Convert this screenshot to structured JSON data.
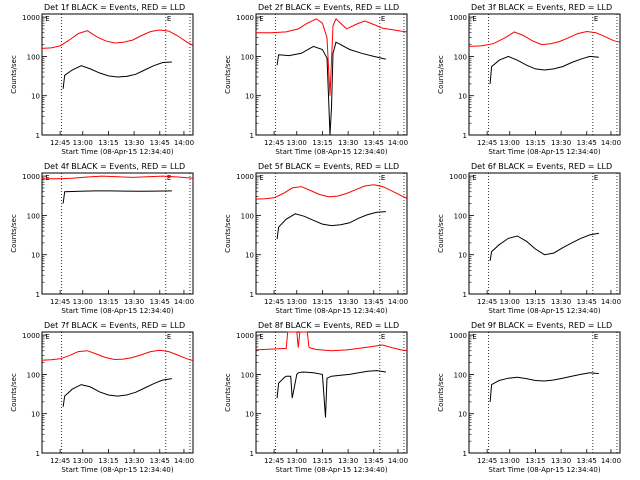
{
  "figure": {
    "background": "#ffffff",
    "axis_color": "#000000",
    "events_color": "#000000",
    "lld_color": "#ff0000"
  },
  "chart_data": [
    {
      "type": "line",
      "title": "Det 1f BLACK = Events, RED = LLD",
      "xlabel": "Start Time (08-Apr-15 12:34:40)",
      "ylabel": "Counts/sec",
      "yscale": "log",
      "ylim": [
        1,
        1200
      ],
      "x_ticks": [
        "12:45",
        "13:00",
        "13:15",
        "13:30",
        "13:45",
        "14:00"
      ],
      "y_ticks": [
        "1",
        "10",
        "100",
        "1000"
      ],
      "markers": [
        "E",
        "E"
      ],
      "series": [
        {
          "name": "LLD",
          "color": "#ff0000",
          "x": [
            0,
            0.06,
            0.12,
            0.18,
            0.24,
            0.3,
            0.36,
            0.42,
            0.48,
            0.54,
            0.6,
            0.66,
            0.72,
            0.78,
            0.84,
            0.9,
            0.96,
            1.0
          ],
          "y": [
            160,
            165,
            185,
            260,
            380,
            450,
            320,
            250,
            220,
            230,
            260,
            340,
            430,
            470,
            440,
            330,
            230,
            190
          ]
        },
        {
          "name": "Events",
          "color": "#000000",
          "x": [
            0.14,
            0.15,
            0.2,
            0.26,
            0.32,
            0.38,
            0.44,
            0.5,
            0.56,
            0.62,
            0.68,
            0.74,
            0.8,
            0.86
          ],
          "y": [
            15,
            33,
            45,
            58,
            48,
            38,
            32,
            30,
            31,
            35,
            45,
            58,
            70,
            72
          ]
        }
      ]
    },
    {
      "type": "line",
      "title": "Det 2f BLACK = Events, RED = LLD",
      "xlabel": "Start Time (08-Apr-15 12:34:40)",
      "ylabel": "Counts/sec",
      "yscale": "log",
      "ylim": [
        1,
        1200
      ],
      "x_ticks": [
        "12:45",
        "13:00",
        "13:15",
        "13:30",
        "13:45",
        "14:00"
      ],
      "y_ticks": [
        "1",
        "10",
        "100",
        "1000"
      ],
      "markers": [
        "E",
        "E"
      ],
      "series": [
        {
          "name": "LLD",
          "color": "#ff0000",
          "x": [
            0,
            0.1,
            0.2,
            0.28,
            0.34,
            0.4,
            0.44,
            0.47,
            0.49,
            0.51,
            0.53,
            0.56,
            0.6,
            0.66,
            0.72,
            0.78,
            0.84,
            0.9,
            0.96,
            1.0
          ],
          "y": [
            400,
            400,
            420,
            500,
            700,
            900,
            700,
            300,
            10,
            600,
            900,
            700,
            500,
            650,
            800,
            650,
            520,
            480,
            440,
            420
          ]
        },
        {
          "name": "Events",
          "color": "#000000",
          "x": [
            0.14,
            0.15,
            0.22,
            0.3,
            0.38,
            0.44,
            0.47,
            0.48,
            0.49,
            0.5,
            0.51,
            0.53,
            0.56,
            0.62,
            0.7,
            0.78,
            0.86
          ],
          "y": [
            60,
            110,
            105,
            120,
            180,
            150,
            90,
            10,
            1,
            5,
            120,
            230,
            200,
            150,
            120,
            100,
            85
          ]
        }
      ]
    },
    {
      "type": "line",
      "title": "Det 3f BLACK = Events, RED = LLD",
      "xlabel": "Start Time (08-Apr-15 12:34:40)",
      "ylabel": "Counts/sec",
      "yscale": "log",
      "ylim": [
        1,
        1200
      ],
      "x_ticks": [
        "12:45",
        "13:00",
        "13:15",
        "13:30",
        "13:45",
        "14:00"
      ],
      "y_ticks": [
        "1",
        "10",
        "100",
        "1000"
      ],
      "markers": [
        "E",
        "E"
      ],
      "series": [
        {
          "name": "LLD",
          "color": "#ff0000",
          "x": [
            0,
            0.08,
            0.16,
            0.24,
            0.3,
            0.36,
            0.42,
            0.48,
            0.54,
            0.6,
            0.66,
            0.72,
            0.78,
            0.84,
            0.9,
            0.96,
            1.0
          ],
          "y": [
            180,
            185,
            210,
            300,
            420,
            340,
            250,
            200,
            210,
            240,
            300,
            380,
            430,
            400,
            320,
            250,
            230
          ]
        },
        {
          "name": "Events",
          "color": "#000000",
          "x": [
            0.14,
            0.15,
            0.2,
            0.26,
            0.32,
            0.38,
            0.44,
            0.5,
            0.56,
            0.62,
            0.68,
            0.74,
            0.8,
            0.86
          ],
          "y": [
            20,
            55,
            80,
            100,
            80,
            60,
            48,
            45,
            48,
            55,
            70,
            85,
            100,
            95
          ]
        }
      ]
    },
    {
      "type": "line",
      "title": "Det 4f BLACK = Events, RED = LLD",
      "xlabel": "Start Time (08-Apr-15 12:34:40)",
      "ylabel": "Counts/sec",
      "yscale": "log",
      "ylim": [
        1,
        1200
      ],
      "x_ticks": [
        "12:45",
        "13:00",
        "13:15",
        "13:30",
        "13:45",
        "14:00"
      ],
      "y_ticks": [
        "1",
        "10",
        "100",
        "1000"
      ],
      "markers": [
        "E",
        "E"
      ],
      "series": [
        {
          "name": "LLD",
          "color": "#ff0000",
          "x": [
            0,
            0.1,
            0.2,
            0.3,
            0.4,
            0.5,
            0.6,
            0.7,
            0.8,
            0.9,
            1.0
          ],
          "y": [
            850,
            860,
            880,
            950,
            1000,
            960,
            930,
            960,
            1000,
            950,
            880
          ]
        },
        {
          "name": "Events",
          "color": "#000000",
          "x": [
            0.14,
            0.15,
            0.25,
            0.35,
            0.45,
            0.55,
            0.65,
            0.75,
            0.86
          ],
          "y": [
            200,
            400,
            410,
            420,
            420,
            415,
            410,
            415,
            420
          ]
        }
      ]
    },
    {
      "type": "line",
      "title": "Det 5f BLACK = Events, RED = LLD",
      "xlabel": "Start Time (08-Apr-15 12:34:40)",
      "ylabel": "Counts/sec",
      "yscale": "log",
      "ylim": [
        1,
        1200
      ],
      "x_ticks": [
        "12:45",
        "13:00",
        "13:15",
        "13:30",
        "13:45",
        "14:00"
      ],
      "y_ticks": [
        "1",
        "10",
        "100",
        "1000"
      ],
      "markers": [
        "E",
        "E"
      ],
      "series": [
        {
          "name": "LLD",
          "color": "#ff0000",
          "x": [
            0,
            0.06,
            0.12,
            0.18,
            0.24,
            0.3,
            0.36,
            0.42,
            0.48,
            0.54,
            0.6,
            0.66,
            0.72,
            0.78,
            0.84,
            0.9,
            0.96,
            1.0
          ],
          "y": [
            260,
            265,
            280,
            360,
            500,
            540,
            430,
            340,
            300,
            310,
            360,
            450,
            560,
            600,
            540,
            420,
            320,
            270
          ]
        },
        {
          "name": "Events",
          "color": "#000000",
          "x": [
            0.14,
            0.15,
            0.2,
            0.26,
            0.32,
            0.38,
            0.44,
            0.5,
            0.56,
            0.62,
            0.68,
            0.74,
            0.8,
            0.86
          ],
          "y": [
            25,
            50,
            80,
            110,
            95,
            75,
            60,
            55,
            58,
            65,
            85,
            105,
            120,
            125
          ]
        }
      ]
    },
    {
      "type": "line",
      "title": "Det 6f BLACK = Events, RED = LLD",
      "xlabel": "Start Time (08-Apr-15 12:34:40)",
      "ylabel": "Counts/sec",
      "yscale": "log",
      "ylim": [
        1,
        1200
      ],
      "x_ticks": [
        "12:45",
        "13:00",
        "13:15",
        "13:30",
        "13:45",
        "14:00"
      ],
      "y_ticks": [
        "1",
        "10",
        "100",
        "1000"
      ],
      "markers": [
        "E",
        "E"
      ],
      "series": [
        {
          "name": "Events",
          "color": "#000000",
          "x": [
            0.14,
            0.15,
            0.2,
            0.26,
            0.32,
            0.38,
            0.44,
            0.5,
            0.56,
            0.62,
            0.68,
            0.74,
            0.8,
            0.86
          ],
          "y": [
            7,
            12,
            18,
            26,
            30,
            22,
            14,
            10,
            11,
            15,
            20,
            26,
            32,
            35
          ]
        }
      ]
    },
    {
      "type": "line",
      "title": "Det 7f BLACK = Events, RED = LLD",
      "xlabel": "Start Time (08-Apr-15 12:34:40)",
      "ylabel": "Counts/sec",
      "yscale": "log",
      "ylim": [
        1,
        1200
      ],
      "x_ticks": [
        "12:45",
        "13:00",
        "13:15",
        "13:30",
        "13:45",
        "14:00"
      ],
      "y_ticks": [
        "1",
        "10",
        "100",
        "1000"
      ],
      "markers": [
        "E",
        "E"
      ],
      "series": [
        {
          "name": "LLD",
          "color": "#ff0000",
          "x": [
            0,
            0.06,
            0.12,
            0.18,
            0.24,
            0.3,
            0.36,
            0.42,
            0.48,
            0.54,
            0.6,
            0.66,
            0.72,
            0.78,
            0.84,
            0.9,
            0.96,
            1.0
          ],
          "y": [
            230,
            235,
            250,
            300,
            380,
            400,
            330,
            270,
            240,
            245,
            270,
            320,
            380,
            410,
            380,
            310,
            250,
            225
          ]
        },
        {
          "name": "Events",
          "color": "#000000",
          "x": [
            0.14,
            0.15,
            0.2,
            0.26,
            0.32,
            0.38,
            0.44,
            0.5,
            0.56,
            0.62,
            0.68,
            0.74,
            0.8,
            0.86
          ],
          "y": [
            15,
            28,
            42,
            55,
            48,
            36,
            30,
            28,
            30,
            35,
            45,
            58,
            72,
            78
          ]
        }
      ]
    },
    {
      "type": "line",
      "title": "Det 8f BLACK = Events, RED = LLD",
      "xlabel": "Start Time (08-Apr-15 12:34:40)",
      "ylabel": "Counts/sec",
      "yscale": "log",
      "ylim": [
        1,
        1200
      ],
      "x_ticks": [
        "12:45",
        "13:00",
        "13:15",
        "13:30",
        "13:45",
        "14:00"
      ],
      "y_ticks": [
        "1",
        "10",
        "100",
        "1000"
      ],
      "markers": [
        "E",
        "E"
      ],
      "series": [
        {
          "name": "LLD",
          "color": "#ff0000",
          "x": [
            0,
            0.1,
            0.2,
            0.21,
            0.22,
            0.27,
            0.28,
            0.29,
            0.34,
            0.35,
            0.36,
            0.4,
            0.5,
            0.6,
            0.7,
            0.78,
            0.84,
            0.9,
            0.96,
            1.0
          ],
          "y": [
            420,
            440,
            460,
            1200,
            1200,
            1200,
            480,
            1200,
            1200,
            500,
            470,
            430,
            400,
            420,
            470,
            520,
            560,
            480,
            420,
            400
          ]
        },
        {
          "name": "Events",
          "color": "#000000",
          "x": [
            0.14,
            0.15,
            0.19,
            0.2,
            0.23,
            0.24,
            0.27,
            0.28,
            0.31,
            0.38,
            0.44,
            0.46,
            0.47,
            0.5,
            0.56,
            0.62,
            0.68,
            0.74,
            0.8,
            0.86
          ],
          "y": [
            25,
            60,
            85,
            90,
            90,
            25,
            100,
            110,
            115,
            110,
            100,
            8,
            80,
            90,
            95,
            100,
            110,
            120,
            125,
            115
          ]
        }
      ]
    },
    {
      "type": "line",
      "title": "Det 9f BLACK = Events, RED = LLD",
      "xlabel": "Start Time (08-Apr-15 12:34:40)",
      "ylabel": "Counts/sec",
      "yscale": "log",
      "ylim": [
        1,
        1200
      ],
      "x_ticks": [
        "12:45",
        "13:00",
        "13:15",
        "13:30",
        "13:45",
        "14:00"
      ],
      "y_ticks": [
        "1",
        "10",
        "100",
        "1000"
      ],
      "markers": [
        "E",
        "E"
      ],
      "series": [
        {
          "name": "Events",
          "color": "#000000",
          "x": [
            0.14,
            0.15,
            0.2,
            0.26,
            0.32,
            0.38,
            0.44,
            0.5,
            0.56,
            0.62,
            0.68,
            0.74,
            0.8,
            0.86
          ],
          "y": [
            20,
            55,
            70,
            80,
            85,
            78,
            70,
            68,
            72,
            80,
            90,
            100,
            110,
            105
          ]
        }
      ]
    }
  ]
}
